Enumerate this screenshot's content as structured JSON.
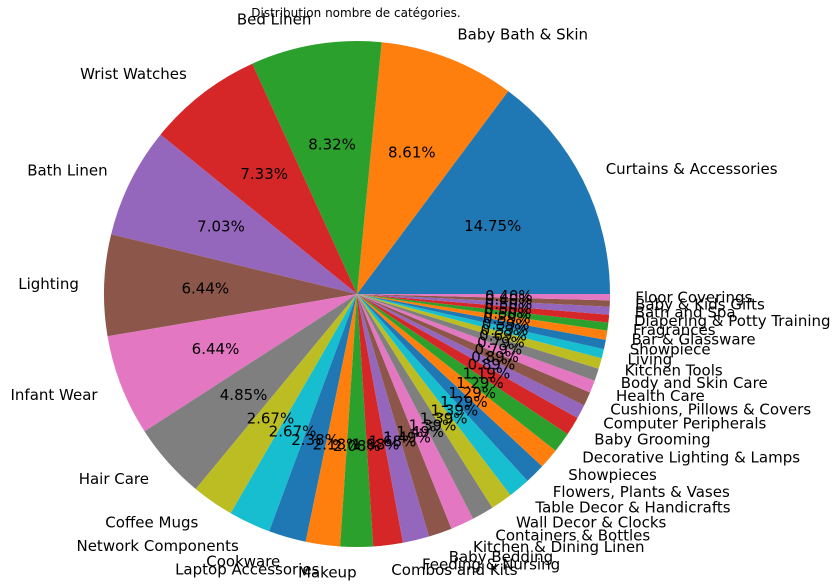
{
  "chart_data": {
    "type": "pie",
    "title": "Distribution nombre de catégories.",
    "slices": [
      {
        "label": "Curtains & Accessories",
        "value": 14.75,
        "pct_label": "14.75%",
        "color": "#1f77b4"
      },
      {
        "label": "Baby Bath & Skin",
        "value": 8.61,
        "pct_label": "8.61%",
        "color": "#ff7f0e"
      },
      {
        "label": "Bed Linen",
        "value": 8.32,
        "pct_label": "8.32%",
        "color": "#2ca02c"
      },
      {
        "label": "Wrist Watches",
        "value": 7.33,
        "pct_label": "7.33%",
        "color": "#d62728"
      },
      {
        "label": "Bath Linen",
        "value": 7.03,
        "pct_label": "7.03%",
        "color": "#9467bd"
      },
      {
        "label": "Lighting",
        "value": 6.44,
        "pct_label": "6.44%",
        "color": "#8c564b"
      },
      {
        "label": "Infant Wear",
        "value": 6.44,
        "pct_label": "6.44%",
        "color": "#e377c2"
      },
      {
        "label": "Hair Care",
        "value": 4.85,
        "pct_label": "4.85%",
        "color": "#7f7f7f"
      },
      {
        "label": "Coffee Mugs",
        "value": 2.67,
        "pct_label": "2.67%",
        "color": "#bcbd22"
      },
      {
        "label": "Network Components",
        "value": 2.67,
        "pct_label": "2.67%",
        "color": "#17becf"
      },
      {
        "label": "Cookware",
        "value": 2.38,
        "pct_label": "2.38%",
        "color": "#1f77b4"
      },
      {
        "label": "Laptop Accessories",
        "value": 2.18,
        "pct_label": "2.18%",
        "color": "#ff7f0e"
      },
      {
        "label": "Makeup",
        "value": 2.08,
        "pct_label": "2.08%",
        "color": "#2ca02c"
      },
      {
        "label": "Combos and Kits",
        "value": 1.88,
        "pct_label": "1.88%",
        "color": "#d62728"
      },
      {
        "label": "Feeding & Nursing",
        "value": 1.68,
        "pct_label": "1.68%",
        "color": "#9467bd"
      },
      {
        "label": "Baby Bedding",
        "value": 1.49,
        "pct_label": "1.49%",
        "color": "#8c564b"
      },
      {
        "label": "Kitchen & Dining Linen",
        "value": 1.49,
        "pct_label": "1.49%",
        "color": "#e377c2"
      },
      {
        "label": "Containers & Bottles",
        "value": 1.39,
        "pct_label": "1.39%",
        "color": "#7f7f7f"
      },
      {
        "label": "Wall Decor & Clocks",
        "value": 1.39,
        "pct_label": "1.39%",
        "color": "#bcbd22"
      },
      {
        "label": "Table Decor & Handicrafts",
        "value": 1.39,
        "pct_label": "1.39%",
        "color": "#17becf"
      },
      {
        "label": "Flowers, Plants & Vases",
        "value": 1.29,
        "pct_label": "1.29%",
        "color": "#1f77b4"
      },
      {
        "label": "Showpieces",
        "value": 1.29,
        "pct_label": "1.29%",
        "color": "#ff7f0e"
      },
      {
        "label": "Decorative Lighting & Lamps",
        "value": 1.29,
        "pct_label": "1.29%",
        "color": "#2ca02c"
      },
      {
        "label": "Baby Grooming",
        "value": 1.19,
        "pct_label": "1.19%",
        "color": "#d62728"
      },
      {
        "label": "Computer Peripherals",
        "value": 0.89,
        "pct_label": "0.89%",
        "color": "#9467bd"
      },
      {
        "label": "Cushions, Pillows & Covers",
        "value": 0.89,
        "pct_label": "0.89%",
        "color": "#8c564b"
      },
      {
        "label": "Health Care",
        "value": 0.79,
        "pct_label": "0.79%",
        "color": "#e377c2"
      },
      {
        "label": "Body and Skin Care",
        "value": 0.79,
        "pct_label": "0.79%",
        "color": "#7f7f7f"
      },
      {
        "label": "Kitchen Tools",
        "value": 0.69,
        "pct_label": "0.69%",
        "color": "#bcbd22"
      },
      {
        "label": "Living",
        "value": 0.59,
        "pct_label": "0.59%",
        "color": "#17becf"
      },
      {
        "label": "Showpiece",
        "value": 0.59,
        "pct_label": "0.59%",
        "color": "#1f77b4"
      },
      {
        "label": "Bar & Glassware",
        "value": 0.59,
        "pct_label": "0.59%",
        "color": "#ff7f0e"
      },
      {
        "label": "Fragrances",
        "value": 0.5,
        "pct_label": "0.50%",
        "color": "#2ca02c"
      },
      {
        "label": "Diapering & Potty Training",
        "value": 0.5,
        "pct_label": "0.50%",
        "color": "#d62728"
      },
      {
        "label": "Bath and Spa",
        "value": 0.5,
        "pct_label": "0.50%",
        "color": "#9467bd"
      },
      {
        "label": "Baby & Kids Gifts",
        "value": 0.4,
        "pct_label": "0.40%",
        "color": "#8c564b"
      },
      {
        "label": "Floor Coverings",
        "value": 0.4,
        "pct_label": "0.40%",
        "color": "#e377c2"
      }
    ]
  }
}
